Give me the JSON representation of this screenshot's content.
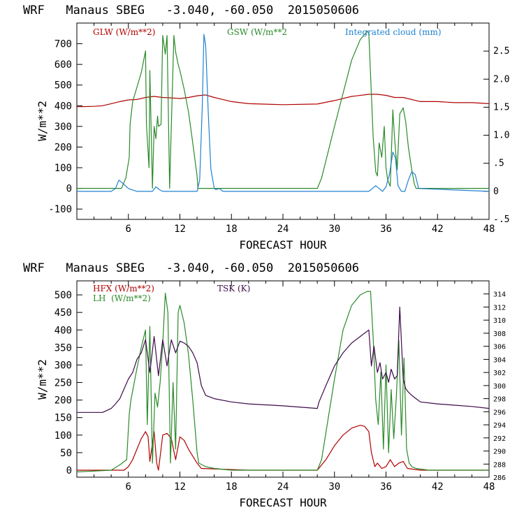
{
  "chart_data": [
    {
      "type": "line",
      "title": "WRF   Manaus SBEG   -3.040, -60.050  2015050606",
      "xlabel": "FORECAST HOUR",
      "ylabel": "W/m**2",
      "xlim": [
        0,
        48
      ],
      "ylim": [
        -150,
        800
      ],
      "y2lim": [
        -0.5,
        3.0
      ],
      "x_ticks": [
        "6",
        "12",
        "18",
        "24",
        "30",
        "36",
        "42",
        "48"
      ],
      "y_ticks": [
        "-100",
        "0",
        "100",
        "200",
        "300",
        "400",
        "500",
        "600",
        "700"
      ],
      "y2_ticks": [
        "-.5",
        "0",
        ".5",
        "1.0",
        "1.5",
        "2.0",
        "2.5"
      ],
      "colors": {
        "glw": "#b00000",
        "gsw": "#2a8a2a",
        "cloud": "#1f82d0"
      },
      "series": [
        {
          "name": "GLW (W/m**2)",
          "axis": "left",
          "x": [
            0,
            2,
            3,
            4,
            5,
            6,
            7,
            8,
            9,
            10,
            11,
            12,
            13,
            14,
            15,
            16,
            17,
            18,
            20,
            24,
            28,
            30,
            32,
            34,
            35,
            36,
            37,
            38,
            40,
            42,
            44,
            46,
            48
          ],
          "values": [
            395,
            397,
            400,
            410,
            420,
            428,
            430,
            440,
            445,
            440,
            438,
            435,
            440,
            448,
            452,
            440,
            430,
            420,
            410,
            405,
            408,
            425,
            445,
            455,
            455,
            450,
            440,
            440,
            420,
            420,
            415,
            415,
            410
          ]
        },
        {
          "name": "GSW (W/m**2",
          "axis": "left",
          "x": [
            0,
            5.2,
            5.7,
            6.1,
            6.2,
            6.5,
            7.5,
            8,
            8.1,
            8.4,
            8.5,
            8.8,
            9,
            9.2,
            9.4,
            9.5,
            9.8,
            10,
            10.3,
            10.5,
            10.8,
            11,
            11.3,
            11.5,
            11.8,
            12,
            12.5,
            13,
            13.5,
            14,
            14.1,
            20,
            28,
            28.5,
            30,
            31,
            32,
            33,
            33.8,
            34,
            34.2,
            34.5,
            34.8,
            35,
            35.2,
            35.5,
            35.8,
            36,
            36.2,
            36.5,
            36.8,
            37,
            37.3,
            37.6,
            38,
            38.3,
            38.6,
            39,
            39.3,
            39.5,
            48
          ],
          "values": [
            0,
            0,
            50,
            150,
            310,
            420,
            560,
            665,
            310,
            100,
            570,
            0,
            300,
            240,
            350,
            300,
            310,
            740,
            650,
            740,
            0,
            300,
            740,
            660,
            600,
            570,
            480,
            370,
            220,
            60,
            0,
            0,
            0,
            50,
            300,
            460,
            620,
            720,
            760,
            750,
            550,
            250,
            80,
            60,
            220,
            150,
            300,
            100,
            40,
            10,
            380,
            240,
            90,
            360,
            390,
            320,
            200,
            90,
            20,
            0,
            0
          ]
        },
        {
          "name": "Integrated cloud (mm)",
          "axis": "right",
          "x": [
            0,
            4,
            4.5,
            4.9,
            5.3,
            6,
            7,
            8.8,
            9.2,
            9.6,
            10,
            14,
            14.3,
            14.6,
            14.8,
            15,
            15.3,
            15.6,
            16,
            16.2,
            16.6,
            17,
            18,
            20,
            34,
            34.8,
            35.2,
            35.6,
            36,
            36.4,
            36.8,
            37.1,
            37.4,
            37.8,
            38.2,
            38.6,
            39,
            39.4,
            39.8,
            48
          ],
          "values": [
            0,
            0,
            0.05,
            0.2,
            0.15,
            0.05,
            0,
            0,
            0.08,
            0.03,
            0,
            0,
            0.2,
            1.5,
            2.8,
            2.6,
            1.4,
            0.4,
            0.05,
            0.03,
            0.05,
            0,
            0,
            0,
            0,
            0.1,
            0.05,
            0,
            0.08,
            0.3,
            0.7,
            0.6,
            0.1,
            0,
            0,
            0.2,
            0.35,
            0.3,
            0.05,
            0
          ]
        }
      ],
      "legend": [
        "GLW (W/m**2)",
        "GSW (W/m**2",
        "Integrated cloud (mm)"
      ]
    },
    {
      "type": "line",
      "title": "WRF   Manaus SBEG   -3.040, -60.050  2015050606",
      "xlabel": "FORECAST HOUR",
      "ylabel": "W/m**2",
      "xlim": [
        0,
        48
      ],
      "ylim": [
        -20,
        540
      ],
      "y2lim": [
        286,
        316
      ],
      "x_ticks": [
        "6",
        "12",
        "18",
        "24",
        "30",
        "36",
        "42",
        "48"
      ],
      "y_ticks": [
        "0",
        "50",
        "100",
        "150",
        "200",
        "250",
        "300",
        "350",
        "400",
        "450",
        "500"
      ],
      "y2_ticks": [
        "286",
        "288",
        "290",
        "292",
        "294",
        "296",
        "298",
        "300",
        "302",
        "304",
        "306",
        "308",
        "310",
        "312",
        "314"
      ],
      "colors": {
        "hfx": "#b00000",
        "lh": "#2a8a2a",
        "tsk": "#3d0a4a"
      },
      "series": [
        {
          "name": "HFX (W/m**2)",
          "axis": "left",
          "x": [
            0,
            5.5,
            6,
            6.5,
            7,
            7.5,
            8,
            8.3,
            8.5,
            9,
            9.3,
            9.5,
            9.8,
            10,
            10.5,
            11,
            11.5,
            12,
            12.5,
            13,
            13.5,
            14,
            14.5,
            20,
            28,
            29,
            30,
            31,
            32,
            33,
            33.5,
            34,
            34.3,
            34.7,
            35,
            35.5,
            36,
            36.5,
            37,
            37.5,
            38,
            38.5,
            40,
            48
          ],
          "values": [
            0,
            0,
            10,
            30,
            60,
            90,
            110,
            95,
            25,
            110,
            20,
            0,
            60,
            100,
            105,
            90,
            30,
            95,
            85,
            60,
            40,
            20,
            5,
            0,
            0,
            30,
            70,
            100,
            120,
            128,
            125,
            110,
            50,
            10,
            20,
            5,
            10,
            30,
            10,
            20,
            25,
            5,
            0,
            0
          ]
        },
        {
          "name": "LH (W/m**2)",
          "axis": "left",
          "x": [
            0,
            4,
            5,
            5.8,
            6.1,
            6.3,
            7,
            7.5,
            8,
            8.2,
            8.5,
            8.8,
            9.1,
            9.4,
            9.7,
            10,
            10.3,
            10.6,
            10.9,
            11.2,
            11.5,
            11.8,
            12,
            12.5,
            13,
            13.5,
            14,
            14.2,
            15,
            16,
            18,
            28,
            28.5,
            30,
            31,
            32,
            33,
            33.8,
            34.2,
            34.5,
            34.8,
            35.1,
            35.4,
            35.7,
            36,
            36.3,
            36.6,
            36.9,
            37.2,
            37.5,
            37.8,
            38.1,
            38.4,
            38.7,
            39,
            39.5,
            41,
            48
          ],
          "values": [
            -5,
            0,
            15,
            30,
            160,
            200,
            290,
            350,
            400,
            130,
            410,
            20,
            220,
            180,
            250,
            360,
            505,
            450,
            20,
            250,
            60,
            450,
            470,
            420,
            330,
            200,
            50,
            20,
            10,
            5,
            0,
            0,
            30,
            260,
            400,
            470,
            500,
            510,
            510,
            380,
            200,
            130,
            280,
            60,
            300,
            50,
            230,
            90,
            210,
            370,
            100,
            320,
            60,
            20,
            10,
            5,
            0,
            0
          ]
        },
        {
          "name": "TSK (K)",
          "axis": "right",
          "x": [
            0,
            3,
            4,
            4.5,
            5,
            5.5,
            6,
            6.5,
            7,
            7.5,
            8,
            8.5,
            9,
            9.5,
            10,
            10.5,
            11,
            11.5,
            12,
            12.5,
            13,
            13.5,
            14,
            14.5,
            15,
            16,
            18,
            20,
            24,
            28,
            28.2,
            29,
            30,
            31,
            32,
            33,
            34,
            34.3,
            34.6,
            35,
            35.3,
            35.6,
            36,
            36.3,
            36.6,
            37,
            37.3,
            37.6,
            38,
            38.3,
            38.6,
            39,
            39.5,
            40,
            42,
            44,
            46,
            48
          ],
          "values": [
            295.9,
            295.9,
            296.5,
            297.2,
            298.0,
            299.5,
            301.0,
            302.0,
            304.0,
            305.0,
            307.0,
            302.0,
            307.5,
            301.5,
            307.0,
            303.0,
            307.0,
            305.0,
            306.8,
            306.5,
            306.0,
            305.0,
            303.5,
            300.0,
            298.5,
            298.0,
            297.5,
            297.2,
            296.9,
            296.5,
            297.5,
            300.0,
            303.0,
            305.0,
            306.5,
            307.5,
            308.5,
            303.0,
            306.0,
            302.0,
            303.5,
            301.0,
            302.0,
            300.5,
            302.5,
            301.0,
            301.5,
            312.0,
            301.0,
            299.5,
            299.0,
            298.5,
            298.0,
            297.5,
            297.2,
            297.0,
            296.8,
            296.5
          ]
        }
      ],
      "legend": [
        "HFX (W/m**2)",
        "LH  (W/m**2)",
        "TSK (K)"
      ]
    }
  ]
}
